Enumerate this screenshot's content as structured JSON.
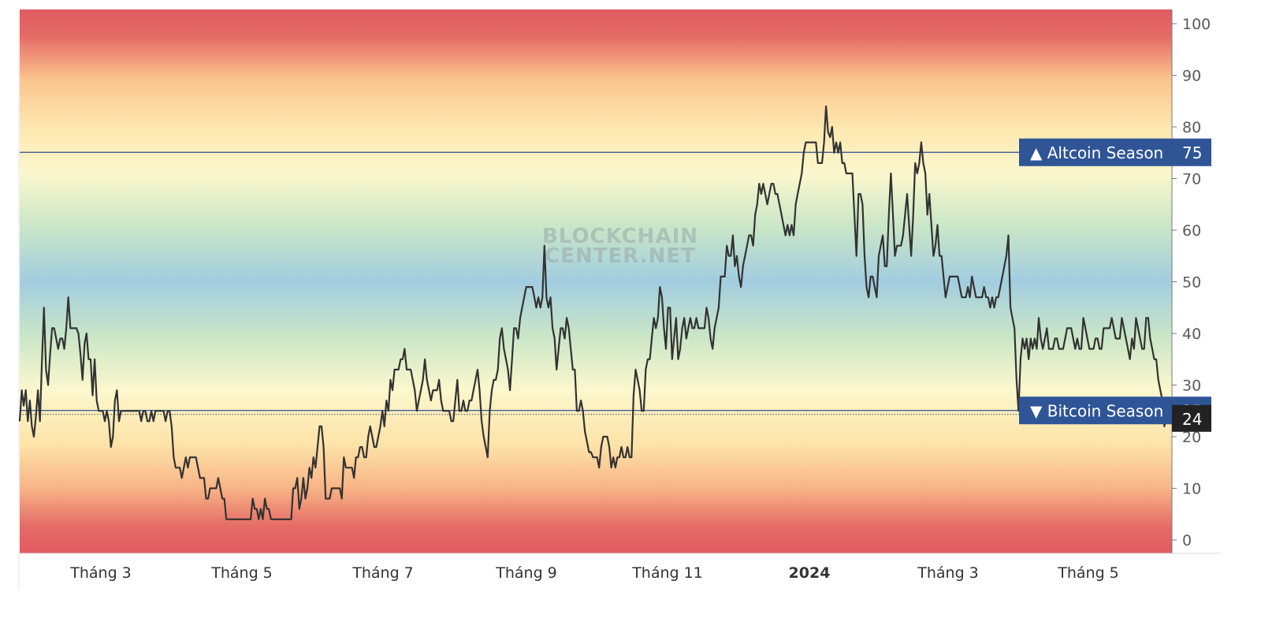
{
  "chart_data": {
    "type": "line",
    "title": "",
    "watermark": [
      "BLOCKCHAIN",
      "CENTER.NET"
    ],
    "x_axis_labels": [
      {
        "text": "Tháng 3",
        "bold": false
      },
      {
        "text": "Tháng 5",
        "bold": false
      },
      {
        "text": "Tháng 7",
        "bold": false
      },
      {
        "text": "Tháng 9",
        "bold": false
      },
      {
        "text": "Tháng 11",
        "bold": false
      },
      {
        "text": "2024",
        "bold": true
      },
      {
        "text": "Tháng 3",
        "bold": false
      },
      {
        "text": "Tháng 5",
        "bold": false
      }
    ],
    "y_ticks": [
      "0",
      "10",
      "20",
      "30",
      "40",
      "50",
      "60",
      "70",
      "80",
      "90",
      "100"
    ],
    "ylim": [
      0,
      100
    ],
    "series": [
      {
        "values": [
          23,
          29,
          26,
          29,
          23,
          27,
          22,
          20,
          24,
          29,
          23,
          35,
          45,
          33,
          30,
          36,
          41,
          41,
          39,
          37,
          39,
          39,
          37,
          41,
          47,
          41,
          41,
          41,
          41,
          40,
          36,
          31,
          38,
          40,
          35,
          35,
          28,
          35,
          27,
          25,
          25,
          25,
          23,
          25,
          23,
          18,
          20,
          27,
          29,
          23,
          25,
          25,
          25,
          25,
          25,
          25,
          25,
          25,
          25,
          25,
          23,
          25,
          25,
          23,
          23,
          25,
          23,
          25,
          25,
          25,
          25,
          25,
          23,
          25,
          25,
          22,
          16,
          14,
          14,
          14,
          12,
          14,
          16,
          14,
          16,
          16,
          16,
          16,
          14,
          12,
          12,
          12,
          8,
          8,
          10,
          10,
          10,
          10,
          12,
          10,
          8,
          8,
          4,
          4,
          4,
          4,
          4,
          4,
          4,
          4,
          4,
          4,
          4,
          4,
          4,
          8,
          6,
          6,
          4,
          6,
          4,
          8,
          6,
          6,
          4,
          4,
          4,
          4,
          4,
          4,
          4,
          4,
          4,
          4,
          4,
          10,
          10,
          12,
          6,
          8,
          12,
          8,
          10,
          14,
          12,
          16,
          14,
          18,
          22,
          22,
          18,
          8,
          8,
          8,
          10,
          10,
          10,
          10,
          10,
          8,
          16,
          14,
          14,
          14,
          14,
          12,
          16,
          16,
          18,
          18,
          16,
          16,
          20,
          22,
          20,
          18,
          18,
          20,
          22,
          25,
          22,
          27,
          25,
          31,
          29,
          33,
          33,
          33,
          35,
          35,
          37,
          33,
          33,
          33,
          31,
          29,
          25,
          27,
          29,
          31,
          35,
          31,
          29,
          27,
          29,
          29,
          29,
          31,
          27,
          25,
          25,
          25,
          25,
          23,
          23,
          27,
          31,
          25,
          25,
          27,
          25,
          25,
          27,
          27,
          29,
          31,
          33,
          29,
          23,
          20,
          18,
          16,
          25,
          29,
          31,
          31,
          33,
          39,
          41,
          37,
          35,
          33,
          29,
          35,
          41,
          41,
          39,
          43,
          45,
          47,
          49,
          49,
          49,
          49,
          47,
          45,
          47,
          45,
          47,
          57,
          47,
          45,
          47,
          41,
          39,
          33,
          37,
          41,
          41,
          39,
          43,
          41,
          37,
          33,
          33,
          25,
          25,
          27,
          25,
          21,
          19,
          17,
          17,
          16,
          16,
          16,
          14,
          18,
          20,
          20,
          20,
          18,
          14,
          16,
          14,
          16,
          16,
          18,
          16,
          16,
          18,
          16,
          16,
          28,
          33,
          31,
          29,
          25,
          25,
          33,
          35,
          35,
          39,
          43,
          41,
          43,
          49,
          47,
          41,
          37,
          45,
          45,
          35,
          39,
          43,
          35,
          37,
          41,
          43,
          39,
          41,
          43,
          41,
          41,
          43,
          41,
          41,
          41,
          41,
          45,
          43,
          39,
          37,
          41,
          43,
          45,
          51,
          51,
          51,
          57,
          55,
          55,
          59,
          53,
          55,
          51,
          49,
          53,
          55,
          57,
          59,
          59,
          57,
          63,
          65,
          69,
          67,
          69,
          67,
          65,
          67,
          69,
          69,
          67,
          67,
          65,
          63,
          61,
          59,
          61,
          59,
          61,
          59,
          65,
          67,
          69,
          71,
          75,
          77,
          77,
          77,
          77,
          77,
          77,
          73,
          73,
          73,
          77,
          84,
          79,
          78,
          80,
          75,
          77,
          75,
          77,
          73,
          73,
          71,
          71,
          71,
          71,
          63,
          55,
          67,
          67,
          65,
          55,
          49,
          47,
          51,
          51,
          49,
          47,
          55,
          57,
          59,
          53,
          53,
          63,
          71,
          63,
          55,
          57,
          57,
          57,
          59,
          63,
          67,
          61,
          55,
          63,
          73,
          71,
          73,
          77,
          73,
          71,
          63,
          67,
          61,
          55,
          57,
          61,
          55,
          55,
          51,
          47,
          49,
          51,
          51,
          51,
          51,
          51,
          49,
          47,
          47,
          47,
          49,
          47,
          51,
          49,
          47,
          47,
          47,
          47,
          49,
          47,
          47,
          45,
          47,
          45,
          47,
          47,
          49,
          51,
          53,
          55,
          59,
          45,
          43,
          41,
          31,
          25,
          35,
          39,
          37,
          39,
          35,
          39,
          37,
          39,
          37,
          43,
          39,
          37,
          39,
          41,
          37,
          37,
          37,
          39,
          39,
          37,
          37,
          37,
          39,
          41,
          41,
          41,
          39,
          37,
          39,
          37,
          37,
          43,
          41,
          39,
          37,
          37,
          37,
          39,
          39,
          37,
          37,
          41,
          41,
          41,
          41,
          43,
          41,
          39,
          39,
          39,
          43,
          41,
          39,
          37,
          35,
          39,
          37,
          43,
          41,
          39,
          37,
          37,
          43,
          43,
          39,
          37,
          35,
          35,
          31,
          29,
          27,
          22,
          24
        ]
      }
    ],
    "thresholds": [
      {
        "label": "▲ Altcoin Season",
        "value": 75
      },
      {
        "label": "▼ Bitcoin Season",
        "value": 25
      }
    ],
    "current_value": 24,
    "colors": {
      "line": "#333333",
      "threshold_line": "#2f4f8f",
      "badge_bg": "#2f5597",
      "current_badge_bg": "#222222",
      "gradient": [
        "#e05a60",
        "#f3a87a",
        "#fde4a8",
        "#fdf8cc",
        "#bfe2c2",
        "#a4cde0",
        "#bfe2c2",
        "#fdf8cc",
        "#fde4a8",
        "#f3a87a",
        "#e05a60"
      ]
    },
    "grid": false
  }
}
